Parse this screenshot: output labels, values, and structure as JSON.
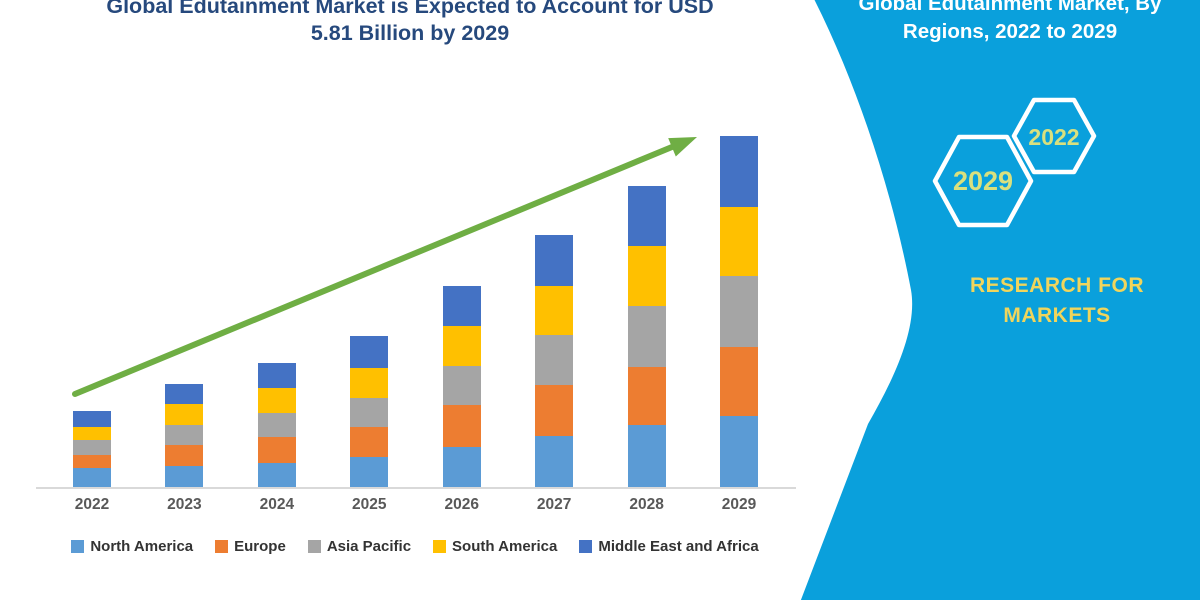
{
  "chart": {
    "title_line1": "Global Edutainment Market is Expected to Account for USD",
    "title_line2": "5.81 Billion by 2029",
    "title_color": "#26497D",
    "arrow_color": "#6fae44",
    "axis_color": "#d9d9d9",
    "x_label_color": "#595959"
  },
  "chart_data": {
    "type": "bar",
    "stacked": true,
    "title": "Global Edutainment Market is Expected to Account for USD 5.81 Billion by 2029",
    "unit": "USD Billion",
    "categories": [
      "2022",
      "2023",
      "2024",
      "2025",
      "2026",
      "2027",
      "2028",
      "2029"
    ],
    "series": [
      {
        "name": "North America",
        "color": "#5B9BD5",
        "values": [
          0.31,
          0.35,
          0.4,
          0.49,
          0.66,
          0.84,
          1.03,
          1.17
        ]
      },
      {
        "name": "Europe",
        "color": "#ED7D31",
        "values": [
          0.22,
          0.34,
          0.42,
          0.5,
          0.7,
          0.84,
          0.95,
          1.14
        ]
      },
      {
        "name": "Asia Pacific",
        "color": "#A5A5A5",
        "values": [
          0.25,
          0.33,
          0.41,
          0.48,
          0.64,
          0.83,
          1.02,
          1.18
        ]
      },
      {
        "name": "South America",
        "color": "#FFC000",
        "values": [
          0.22,
          0.36,
          0.41,
          0.5,
          0.66,
          0.81,
          0.98,
          1.14
        ]
      },
      {
        "name": "Middle East and Africa",
        "color": "#4472C4",
        "values": [
          0.26,
          0.33,
          0.41,
          0.52,
          0.66,
          0.84,
          0.99,
          1.17
        ]
      }
    ],
    "totals": [
      1.26,
      1.71,
      2.05,
      2.49,
      3.32,
      4.16,
      4.97,
      5.81
    ],
    "ylim": [
      0,
      6
    ],
    "y_axis_visible": false,
    "grid": false,
    "legend_position": "bottom",
    "annotations": [
      "upward green trend arrow across bar tops"
    ]
  },
  "side_panel": {
    "title_line1": "Global Edutainment Market, By",
    "title_line2": "Regions, 2022 to 2029",
    "hexagon_large_label": "2029",
    "hexagon_small_label": "2022",
    "brand_line1": "RESEARCH FOR",
    "brand_line2": "MARKETS",
    "colors": {
      "panel": "#0aa0dc",
      "hexagon_outline": "#ffffff",
      "hexagon_text": "#d9e07e",
      "brand_text": "#F0D55C",
      "title_text": "#ffffff"
    }
  }
}
